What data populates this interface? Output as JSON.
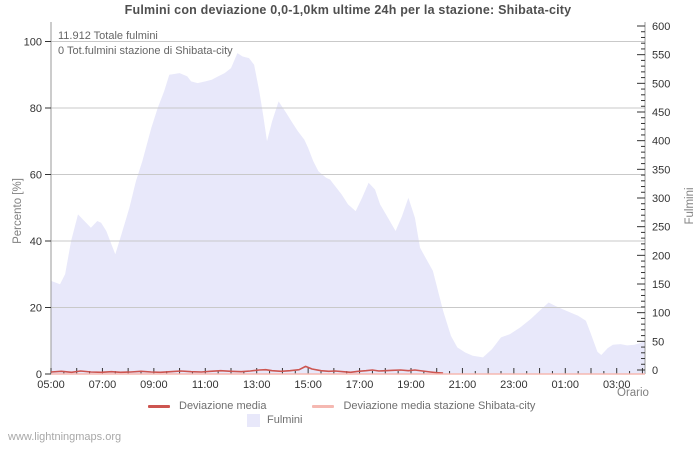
{
  "title": "Fulmini con deviazione 0,0-1,0km ultime 24h per la stazione: Shibata-city",
  "watermark": "www.lightningmaps.org",
  "chart_data": {
    "type": "area",
    "title": "Fulmini con deviazione 0,0-1,0km ultime 24h per la stazione: Shibata-city",
    "annotations": {
      "total": "11.912 Totale fulmini",
      "station_total": "0 Tot.fulmini stazione di Shibata-city"
    },
    "x_axis": {
      "label": "Orario",
      "unit": "hours_after_05:00",
      "range_hours": [
        0,
        23.1
      ],
      "tick_hours": [
        0,
        2,
        4,
        6,
        8,
        10,
        12,
        14,
        16,
        18,
        20,
        22
      ],
      "tick_labels": [
        "05:00",
        "07:00",
        "09:00",
        "11:00",
        "13:00",
        "15:00",
        "17:00",
        "19:00",
        "21:00",
        "23:00",
        "01:00",
        "03:00"
      ],
      "minor_tick_every_hours": 0.5
    },
    "left_axis": {
      "label": "Percento   [%]",
      "min": 0,
      "max": 100,
      "ticks": [
        0,
        20,
        40,
        60,
        80,
        100
      ],
      "grid": true
    },
    "right_axis": {
      "label": "Fulmini",
      "min": 0,
      "max": 600,
      "major_tick_every": 50,
      "minor_tick_every": 10
    },
    "legend": [
      {
        "label": "Deviazione media",
        "type": "line",
        "color": "#cd5550"
      },
      {
        "label": "Deviazione media stazione Shibata-city",
        "type": "line",
        "color": "#f5b8b1"
      },
      {
        "label": "Fulmini",
        "type": "area",
        "color": "#e8e8fa"
      }
    ],
    "series": [
      {
        "name": "Fulmini",
        "type": "area",
        "axis": "left",
        "unit": "percent",
        "color": "#e8e8fa",
        "note": "approximate fulmini on right axis = percent * 6",
        "points": [
          [
            0,
            28
          ],
          [
            0.35,
            27
          ],
          [
            0.55,
            30
          ],
          [
            0.78,
            40
          ],
          [
            1.05,
            48
          ],
          [
            1.3,
            46
          ],
          [
            1.55,
            44
          ],
          [
            1.8,
            46
          ],
          [
            1.95,
            45.5
          ],
          [
            2.15,
            43
          ],
          [
            2.35,
            39
          ],
          [
            2.5,
            36
          ],
          [
            2.7,
            41
          ],
          [
            3.05,
            50
          ],
          [
            3.3,
            58
          ],
          [
            3.55,
            64
          ],
          [
            3.9,
            74
          ],
          [
            4.15,
            80
          ],
          [
            4.4,
            85
          ],
          [
            4.6,
            90
          ],
          [
            5,
            90.5
          ],
          [
            5.3,
            89.5
          ],
          [
            5.45,
            88
          ],
          [
            5.7,
            87.5
          ],
          [
            6,
            88
          ],
          [
            6.25,
            88.5
          ],
          [
            6.5,
            89.5
          ],
          [
            6.75,
            90.5
          ],
          [
            7,
            92
          ],
          [
            7.25,
            96.5
          ],
          [
            7.45,
            95.5
          ],
          [
            7.7,
            95
          ],
          [
            7.9,
            93
          ],
          [
            8.1,
            85
          ],
          [
            8.25,
            78
          ],
          [
            8.4,
            70
          ],
          [
            8.6,
            76
          ],
          [
            8.85,
            82
          ],
          [
            9.15,
            78.5
          ],
          [
            9.35,
            76
          ],
          [
            9.6,
            73
          ],
          [
            9.85,
            70.5
          ],
          [
            10,
            68
          ],
          [
            10.2,
            64
          ],
          [
            10.4,
            61
          ],
          [
            10.7,
            59
          ],
          [
            10.85,
            58.5
          ],
          [
            11.1,
            56
          ],
          [
            11.3,
            54
          ],
          [
            11.55,
            51
          ],
          [
            11.85,
            49
          ],
          [
            12.1,
            53
          ],
          [
            12.35,
            57.5
          ],
          [
            12.6,
            55.5
          ],
          [
            12.8,
            51
          ],
          [
            13.1,
            47
          ],
          [
            13.4,
            43
          ],
          [
            13.65,
            47.5
          ],
          [
            13.9,
            53
          ],
          [
            14.15,
            47
          ],
          [
            14.35,
            38
          ],
          [
            14.6,
            34.5
          ],
          [
            14.85,
            31
          ],
          [
            15.05,
            25
          ],
          [
            15.25,
            19
          ],
          [
            15.55,
            11.5
          ],
          [
            15.8,
            8
          ],
          [
            16.1,
            6.5
          ],
          [
            16.4,
            5.5
          ],
          [
            16.8,
            5
          ],
          [
            17.15,
            7.5
          ],
          [
            17.5,
            11
          ],
          [
            17.85,
            12
          ],
          [
            18.25,
            14
          ],
          [
            18.65,
            16.5
          ],
          [
            19,
            19
          ],
          [
            19.35,
            21.5
          ],
          [
            19.6,
            20.5
          ],
          [
            19.9,
            19.5
          ],
          [
            20.2,
            18.5
          ],
          [
            20.5,
            17.5
          ],
          [
            20.8,
            16
          ],
          [
            21,
            12
          ],
          [
            21.25,
            6.7
          ],
          [
            21.4,
            5.7
          ],
          [
            21.65,
            7.8
          ],
          [
            21.85,
            8.8
          ],
          [
            22.15,
            9
          ],
          [
            22.4,
            8.6
          ],
          [
            22.7,
            8.8
          ],
          [
            22.9,
            9.3
          ],
          [
            23.1,
            10
          ]
        ]
      },
      {
        "name": "Deviazione media",
        "type": "line",
        "axis": "left",
        "unit": "percent",
        "color": "#cd5550",
        "points": [
          [
            0,
            0.6
          ],
          [
            0.4,
            0.8
          ],
          [
            0.8,
            0.5
          ],
          [
            1.15,
            0.9
          ],
          [
            1.55,
            0.6
          ],
          [
            1.95,
            0.5
          ],
          [
            2.35,
            0.7
          ],
          [
            2.7,
            0.5
          ],
          [
            3.1,
            0.6
          ],
          [
            3.5,
            0.8
          ],
          [
            3.9,
            0.6
          ],
          [
            4.25,
            0.5
          ],
          [
            4.65,
            0.7
          ],
          [
            5.05,
            0.9
          ],
          [
            5.45,
            0.7
          ],
          [
            5.85,
            0.6
          ],
          [
            6.2,
            0.8
          ],
          [
            6.6,
            1
          ],
          [
            7,
            0.8
          ],
          [
            7.4,
            0.7
          ],
          [
            7.75,
            0.9
          ],
          [
            8.1,
            1.2
          ],
          [
            8.35,
            1.3
          ],
          [
            8.6,
            1
          ],
          [
            8.95,
            0.8
          ],
          [
            9.3,
            1
          ],
          [
            9.65,
            1.3
          ],
          [
            9.9,
            2.3
          ],
          [
            10.15,
            1.5
          ],
          [
            10.5,
            1
          ],
          [
            10.8,
            0.8
          ],
          [
            11.05,
            0.9
          ],
          [
            11.35,
            0.7
          ],
          [
            11.65,
            0.5
          ],
          [
            11.95,
            0.8
          ],
          [
            12.25,
            1
          ],
          [
            12.5,
            1.2
          ],
          [
            12.75,
            0.9
          ],
          [
            13,
            1
          ],
          [
            13.3,
            1.1
          ],
          [
            13.6,
            1.2
          ],
          [
            13.9,
            1
          ],
          [
            14.15,
            1.2
          ],
          [
            14.45,
            0.9
          ],
          [
            14.75,
            0.6
          ],
          [
            15,
            0.4
          ],
          [
            15.25,
            0.3
          ]
        ]
      },
      {
        "name": "Deviazione media stazione Shibata-city",
        "type": "line",
        "axis": "left",
        "unit": "percent",
        "color": "#f5b8b1",
        "points": [
          [
            0,
            0
          ],
          [
            23.1,
            0
          ]
        ]
      }
    ]
  }
}
